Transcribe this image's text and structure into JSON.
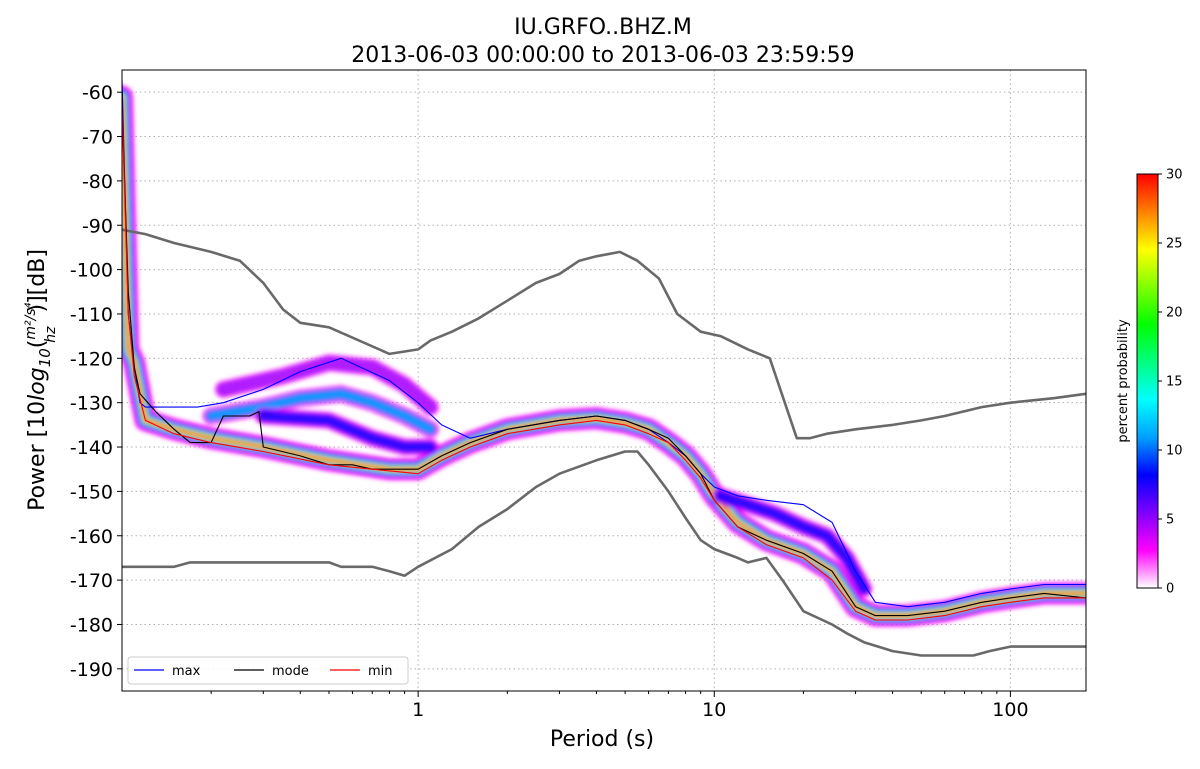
{
  "title": {
    "line1": "IU.GRFO..BHZ.M",
    "line2": "2013-06-03 00:00:00 to 2013-06-03 23:59:59"
  },
  "chart_data": {
    "type": "heatmap",
    "xlabel": "Period (s)",
    "ylabel_parts": {
      "pre": "Power [10",
      "log": "log",
      "sub": "10",
      "num": "m²/s⁴",
      "den": "hz",
      "post": ")][dB]"
    },
    "x_scale": "log",
    "xlim": [
      0.1,
      180
    ],
    "ylim": [
      -195,
      -55
    ],
    "x_ticks": [
      {
        "value": 1,
        "label": "1"
      },
      {
        "value": 10,
        "label": "10"
      },
      {
        "value": 100,
        "label": "100"
      }
    ],
    "y_ticks": [
      {
        "value": -60,
        "label": "-60"
      },
      {
        "value": -70,
        "label": "-70"
      },
      {
        "value": -80,
        "label": "-80"
      },
      {
        "value": -90,
        "label": "-90"
      },
      {
        "value": -100,
        "label": "-100"
      },
      {
        "value": -110,
        "label": "-110"
      },
      {
        "value": -120,
        "label": "-120"
      },
      {
        "value": -130,
        "label": "-130"
      },
      {
        "value": -140,
        "label": "-140"
      },
      {
        "value": -150,
        "label": "-150"
      },
      {
        "value": -160,
        "label": "-160"
      },
      {
        "value": -170,
        "label": "-170"
      },
      {
        "value": -180,
        "label": "-180"
      },
      {
        "value": -190,
        "label": "-190"
      }
    ],
    "grid": true,
    "legend_position": "bottom-left",
    "series": [
      {
        "name": "max",
        "color": "#0000ff",
        "points": [
          [
            0.1,
            -57
          ],
          [
            0.105,
            -110
          ],
          [
            0.11,
            -122
          ],
          [
            0.115,
            -130
          ],
          [
            0.12,
            -131
          ],
          [
            0.14,
            -131
          ],
          [
            0.18,
            -131
          ],
          [
            0.22,
            -130
          ],
          [
            0.3,
            -127
          ],
          [
            0.4,
            -123
          ],
          [
            0.55,
            -120
          ],
          [
            0.8,
            -125
          ],
          [
            1.0,
            -130
          ],
          [
            1.2,
            -135
          ],
          [
            1.5,
            -138
          ],
          [
            2,
            -136
          ],
          [
            3,
            -134
          ],
          [
            4,
            -133
          ],
          [
            5,
            -134
          ],
          [
            6,
            -136
          ],
          [
            7,
            -139
          ],
          [
            8,
            -142
          ],
          [
            9,
            -146
          ],
          [
            10,
            -149
          ],
          [
            12,
            -151
          ],
          [
            15,
            -152
          ],
          [
            20,
            -153
          ],
          [
            25,
            -157
          ],
          [
            30,
            -168
          ],
          [
            35,
            -175
          ],
          [
            45,
            -176
          ],
          [
            60,
            -175
          ],
          [
            80,
            -173
          ],
          [
            100,
            -172
          ],
          [
            130,
            -171
          ],
          [
            180,
            -171
          ]
        ]
      },
      {
        "name": "mode",
        "color": "#000000",
        "points": [
          [
            0.1,
            -63
          ],
          [
            0.105,
            -105
          ],
          [
            0.11,
            -122
          ],
          [
            0.115,
            -128
          ],
          [
            0.13,
            -132
          ],
          [
            0.15,
            -136
          ],
          [
            0.17,
            -139
          ],
          [
            0.2,
            -139
          ],
          [
            0.22,
            -133
          ],
          [
            0.27,
            -133
          ],
          [
            0.29,
            -132
          ],
          [
            0.3,
            -140
          ],
          [
            0.4,
            -142
          ],
          [
            0.5,
            -144
          ],
          [
            0.6,
            -144
          ],
          [
            0.7,
            -145
          ],
          [
            0.8,
            -145
          ],
          [
            1.0,
            -145
          ],
          [
            1.2,
            -142
          ],
          [
            1.5,
            -139
          ],
          [
            2,
            -136
          ],
          [
            3,
            -134
          ],
          [
            4,
            -133
          ],
          [
            5,
            -134
          ],
          [
            6,
            -136
          ],
          [
            7,
            -138
          ],
          [
            8,
            -142
          ],
          [
            9,
            -146
          ],
          [
            10,
            -152
          ],
          [
            12,
            -158
          ],
          [
            15,
            -161
          ],
          [
            20,
            -164
          ],
          [
            25,
            -168
          ],
          [
            30,
            -176
          ],
          [
            35,
            -178
          ],
          [
            45,
            -178
          ],
          [
            60,
            -177
          ],
          [
            80,
            -175
          ],
          [
            100,
            -174
          ],
          [
            130,
            -173
          ],
          [
            180,
            -174
          ]
        ]
      },
      {
        "name": "min",
        "color": "#ff0000",
        "points": [
          [
            0.1,
            -63
          ],
          [
            0.105,
            -110
          ],
          [
            0.11,
            -124
          ],
          [
            0.12,
            -134
          ],
          [
            0.15,
            -137
          ],
          [
            0.2,
            -139
          ],
          [
            0.3,
            -141
          ],
          [
            0.5,
            -144
          ],
          [
            0.7,
            -145
          ],
          [
            1.0,
            -146
          ],
          [
            1.2,
            -143
          ],
          [
            1.5,
            -140
          ],
          [
            2,
            -137
          ],
          [
            3,
            -135
          ],
          [
            4,
            -134
          ],
          [
            5,
            -135
          ],
          [
            6,
            -137
          ],
          [
            7,
            -139
          ],
          [
            8,
            -143
          ],
          [
            9,
            -147
          ],
          [
            10,
            -152
          ],
          [
            12,
            -158
          ],
          [
            15,
            -162
          ],
          [
            20,
            -165
          ],
          [
            25,
            -170
          ],
          [
            30,
            -177
          ],
          [
            35,
            -179
          ],
          [
            45,
            -179
          ],
          [
            60,
            -178
          ],
          [
            80,
            -176
          ],
          [
            100,
            -175
          ],
          [
            130,
            -174
          ],
          [
            180,
            -174
          ]
        ]
      }
    ],
    "noise_models": {
      "color": "#696969",
      "high": [
        [
          0.1,
          -91
        ],
        [
          0.12,
          -92
        ],
        [
          0.15,
          -94
        ],
        [
          0.2,
          -96
        ],
        [
          0.25,
          -98
        ],
        [
          0.3,
          -103
        ],
        [
          0.35,
          -109
        ],
        [
          0.4,
          -112
        ],
        [
          0.5,
          -113
        ],
        [
          0.8,
          -119
        ],
        [
          1.0,
          -118
        ],
        [
          1.1,
          -116
        ],
        [
          1.3,
          -114
        ],
        [
          1.6,
          -111
        ],
        [
          2.0,
          -107
        ],
        [
          2.5,
          -103
        ],
        [
          3.0,
          -101
        ],
        [
          3.5,
          -98
        ],
        [
          4.0,
          -97
        ],
        [
          4.8,
          -96
        ],
        [
          5.5,
          -98
        ],
        [
          6.5,
          -102
        ],
        [
          7.5,
          -110
        ],
        [
          9.0,
          -114
        ],
        [
          10.5,
          -115
        ],
        [
          13,
          -118
        ],
        [
          15.4,
          -120
        ],
        [
          19,
          -138
        ],
        [
          21,
          -138
        ],
        [
          24,
          -137
        ],
        [
          30,
          -136
        ],
        [
          40,
          -135
        ],
        [
          50,
          -134
        ],
        [
          60,
          -133
        ],
        [
          80,
          -131
        ],
        [
          100,
          -130
        ],
        [
          140,
          -129
        ],
        [
          180,
          -128
        ]
      ],
      "low": [
        [
          0.1,
          -167
        ],
        [
          0.15,
          -167
        ],
        [
          0.17,
          -166
        ],
        [
          0.2,
          -166
        ],
        [
          0.3,
          -166
        ],
        [
          0.5,
          -166
        ],
        [
          0.55,
          -167
        ],
        [
          0.7,
          -167
        ],
        [
          0.8,
          -168
        ],
        [
          0.9,
          -169
        ],
        [
          1.0,
          -167
        ],
        [
          1.3,
          -163
        ],
        [
          1.6,
          -158
        ],
        [
          2.0,
          -154
        ],
        [
          2.5,
          -149
        ],
        [
          3.0,
          -146
        ],
        [
          4.0,
          -143
        ],
        [
          5.0,
          -141
        ],
        [
          5.5,
          -141
        ],
        [
          6.0,
          -144
        ],
        [
          7.0,
          -150
        ],
        [
          8.0,
          -156
        ],
        [
          9.0,
          -161
        ],
        [
          10,
          -163
        ],
        [
          12,
          -165
        ],
        [
          13,
          -166
        ],
        [
          15,
          -165
        ],
        [
          17,
          -170
        ],
        [
          20,
          -177
        ],
        [
          25,
          -180
        ],
        [
          28,
          -182
        ],
        [
          32,
          -184
        ],
        [
          40,
          -186
        ],
        [
          50,
          -187
        ],
        [
          60,
          -187
        ],
        [
          75,
          -187
        ],
        [
          85,
          -186
        ],
        [
          100,
          -185
        ],
        [
          130,
          -185
        ],
        [
          180,
          -185
        ]
      ]
    },
    "density_ridges": [
      {
        "points": [
          [
            0.1,
            -61
          ],
          [
            0.105,
            -118
          ],
          [
            0.11,
            -121
          ],
          [
            0.12,
            -134
          ],
          [
            0.15,
            -136
          ],
          [
            0.2,
            -138
          ],
          [
            0.3,
            -140
          ],
          [
            0.5,
            -143
          ],
          [
            0.8,
            -145
          ],
          [
            1.0,
            -145
          ],
          [
            1.2,
            -142
          ],
          [
            1.5,
            -139
          ],
          [
            2,
            -136
          ],
          [
            3,
            -134
          ],
          [
            4,
            -133.5
          ],
          [
            5,
            -134.5
          ],
          [
            6,
            -136
          ],
          [
            7,
            -139
          ],
          [
            8,
            -142
          ],
          [
            9,
            -146
          ],
          [
            10,
            -151
          ],
          [
            12,
            -157
          ],
          [
            15,
            -161
          ],
          [
            20,
            -164
          ],
          [
            25,
            -168
          ],
          [
            30,
            -176
          ],
          [
            35,
            -178
          ],
          [
            45,
            -178
          ],
          [
            60,
            -177
          ],
          [
            80,
            -175
          ],
          [
            100,
            -174
          ],
          [
            130,
            -173
          ],
          [
            180,
            -173
          ]
        ],
        "intensity": 1.0
      },
      {
        "points": [
          [
            0.2,
            -133
          ],
          [
            0.3,
            -131
          ],
          [
            0.4,
            -129
          ],
          [
            0.55,
            -128
          ],
          [
            0.7,
            -130
          ],
          [
            0.9,
            -133
          ],
          [
            1.1,
            -136
          ]
        ],
        "intensity": 0.35
      },
      {
        "points": [
          [
            0.22,
            -127
          ],
          [
            0.35,
            -124
          ],
          [
            0.5,
            -121
          ],
          [
            0.7,
            -122
          ],
          [
            0.9,
            -126
          ],
          [
            1.1,
            -131
          ]
        ],
        "intensity": 0.15
      },
      {
        "points": [
          [
            0.3,
            -133
          ],
          [
            0.5,
            -134
          ],
          [
            0.7,
            -138
          ],
          [
            0.9,
            -140
          ],
          [
            1.1,
            -140
          ]
        ],
        "intensity": 0.2
      },
      {
        "points": [
          [
            10.5,
            -151
          ],
          [
            13,
            -153
          ],
          [
            16,
            -155
          ],
          [
            20,
            -158
          ],
          [
            24,
            -160
          ],
          [
            28,
            -165
          ],
          [
            32,
            -172
          ]
        ],
        "intensity": 0.3
      }
    ],
    "colorbar": {
      "label": "percent probability",
      "min": 0,
      "max": 30,
      "ticks": [
        {
          "value": 0,
          "label": "0"
        },
        {
          "value": 5,
          "label": "5"
        },
        {
          "value": 10,
          "label": "10"
        },
        {
          "value": 15,
          "label": "15"
        },
        {
          "value": 20,
          "label": "20"
        },
        {
          "value": 25,
          "label": "25"
        },
        {
          "value": 30,
          "label": "30"
        }
      ],
      "stops": [
        "#ffffff",
        "#ff00ff",
        "#7f00ff",
        "#0000ff",
        "#00a0ff",
        "#00ffff",
        "#00ff80",
        "#00ff00",
        "#80ff00",
        "#ffff00",
        "#ff8000",
        "#ff0000"
      ]
    }
  }
}
